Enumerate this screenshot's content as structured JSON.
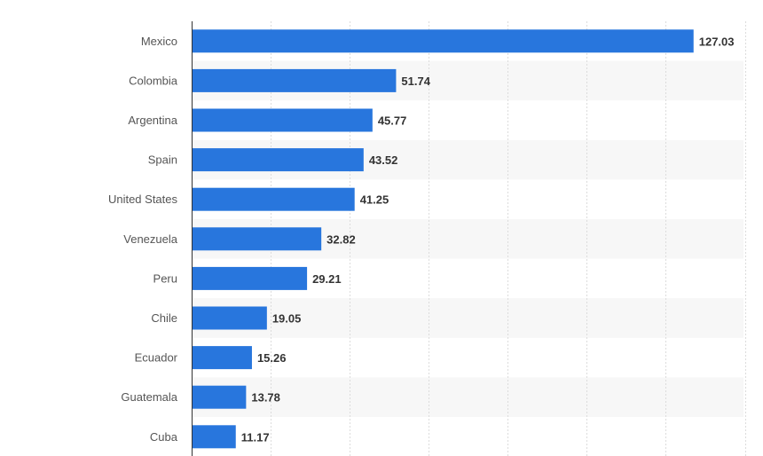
{
  "chart_data": {
    "type": "bar",
    "orientation": "horizontal",
    "categories": [
      "Mexico",
      "Colombia",
      "Argentina",
      "Spain",
      "United States",
      "Venezuela",
      "Peru",
      "Chile",
      "Ecuador",
      "Guatemala",
      "Cuba"
    ],
    "values": [
      127.03,
      51.74,
      45.77,
      43.52,
      41.25,
      32.82,
      29.21,
      19.05,
      15.26,
      13.78,
      11.17
    ],
    "title": "",
    "xlabel": "",
    "ylabel": "",
    "xlim": [
      0,
      140
    ],
    "grid": true,
    "bar_color": "#2876dd",
    "stripe_color": "#f7f7f7"
  }
}
